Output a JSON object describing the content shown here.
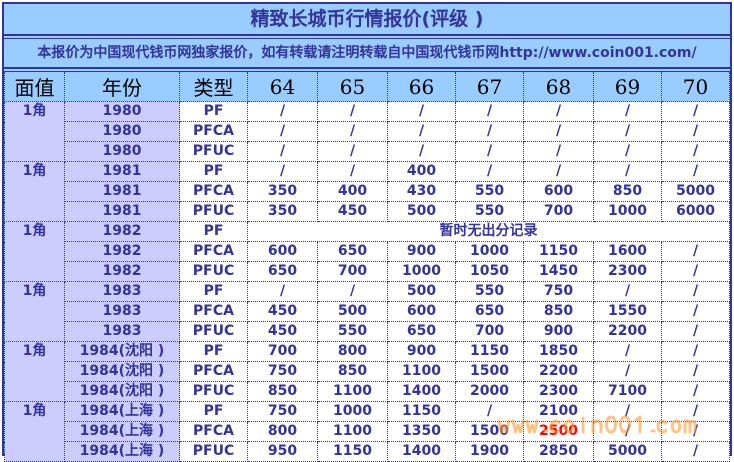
{
  "title": "精致长城币行情报价(评级 )",
  "notice": "本报价为中国现代钱币网独家报价，如有转载请注明转载自中国现代钱币网http://www.coin001.com/",
  "headers": [
    "面值",
    "年份",
    "类型",
    "64",
    "65",
    "66",
    "67",
    "68",
    "69",
    "70"
  ],
  "groups": [
    {
      "face": "1角",
      "rows": [
        {
          "year": "1980",
          "type": "PF",
          "prices": [
            "/",
            "/",
            "/",
            "/",
            "/",
            "/",
            "/"
          ]
        },
        {
          "year": "1980",
          "type": "PFCA",
          "prices": [
            "/",
            "/",
            "/",
            "/",
            "/",
            "/",
            "/"
          ]
        },
        {
          "year": "1980",
          "type": "PFUC",
          "prices": [
            "/",
            "/",
            "/",
            "/",
            "/",
            "/",
            "/"
          ]
        }
      ]
    },
    {
      "face": "1角",
      "rows": [
        {
          "year": "1981",
          "type": "PF",
          "prices": [
            "/",
            "/",
            "400",
            "/",
            "/",
            "/",
            "/"
          ]
        },
        {
          "year": "1981",
          "type": "PFCA",
          "prices": [
            "350",
            "400",
            "430",
            "550",
            "600",
            "850",
            "5000"
          ]
        },
        {
          "year": "1981",
          "type": "PFUC",
          "prices": [
            "350",
            "450",
            "500",
            "550",
            "700",
            "1000",
            "6000"
          ]
        }
      ]
    },
    {
      "face": "1角",
      "rows": [
        {
          "year": "1982",
          "type": "PF",
          "note": "暂时无出分记录"
        },
        {
          "year": "1982",
          "type": "PFCA",
          "prices": [
            "600",
            "650",
            "900",
            "1000",
            "1150",
            "1600",
            "/"
          ]
        },
        {
          "year": "1982",
          "type": "PFUC",
          "prices": [
            "650",
            "700",
            "1000",
            "1050",
            "1450",
            "2300",
            "/"
          ]
        }
      ]
    },
    {
      "face": "1角",
      "rows": [
        {
          "year": "1983",
          "type": "PF",
          "prices": [
            "/",
            "/",
            "500",
            "550",
            "750",
            "/",
            "/"
          ]
        },
        {
          "year": "1983",
          "type": "PFCA",
          "prices": [
            "450",
            "500",
            "600",
            "650",
            "850",
            "1550",
            "/"
          ]
        },
        {
          "year": "1983",
          "type": "PFUC",
          "prices": [
            "450",
            "550",
            "650",
            "700",
            "900",
            "2200",
            "/"
          ]
        }
      ]
    },
    {
      "face": "1角",
      "rows": [
        {
          "year": "1984(沈阳 )",
          "type": "PF",
          "prices": [
            "700",
            "800",
            "900",
            "1150",
            "1850",
            "/",
            "/"
          ]
        },
        {
          "year": "1984(沈阳 )",
          "type": "PFCA",
          "prices": [
            "750",
            "850",
            "1100",
            "1500",
            "2200",
            "/",
            "/"
          ]
        },
        {
          "year": "1984(沈阳 )",
          "type": "PFUC",
          "prices": [
            "850",
            "1100",
            "1400",
            "2000",
            "2300",
            "7100",
            "/"
          ]
        }
      ]
    },
    {
      "face": "1角",
      "rows": [
        {
          "year": "1984(上海 )",
          "type": "PF",
          "prices": [
            "750",
            "1000",
            "1150",
            "/",
            "2100",
            "/",
            "/"
          ]
        },
        {
          "year": "1984(上海 )",
          "type": "PFCA",
          "prices": [
            "800",
            "1100",
            "1350",
            "1500",
            "2500",
            "/",
            "/"
          ],
          "highlight": 4
        },
        {
          "year": "1984(上海 )",
          "type": "PFUC",
          "prices": [
            "950",
            "1150",
            "1400",
            "1900",
            "2850",
            "5000",
            "/"
          ]
        }
      ]
    }
  ],
  "watermark": "www.coin001.com",
  "colors": {
    "header_bg": "#99ccff",
    "side_bg": "#ccccff",
    "text": "#333399",
    "highlight": "#ff0000"
  }
}
